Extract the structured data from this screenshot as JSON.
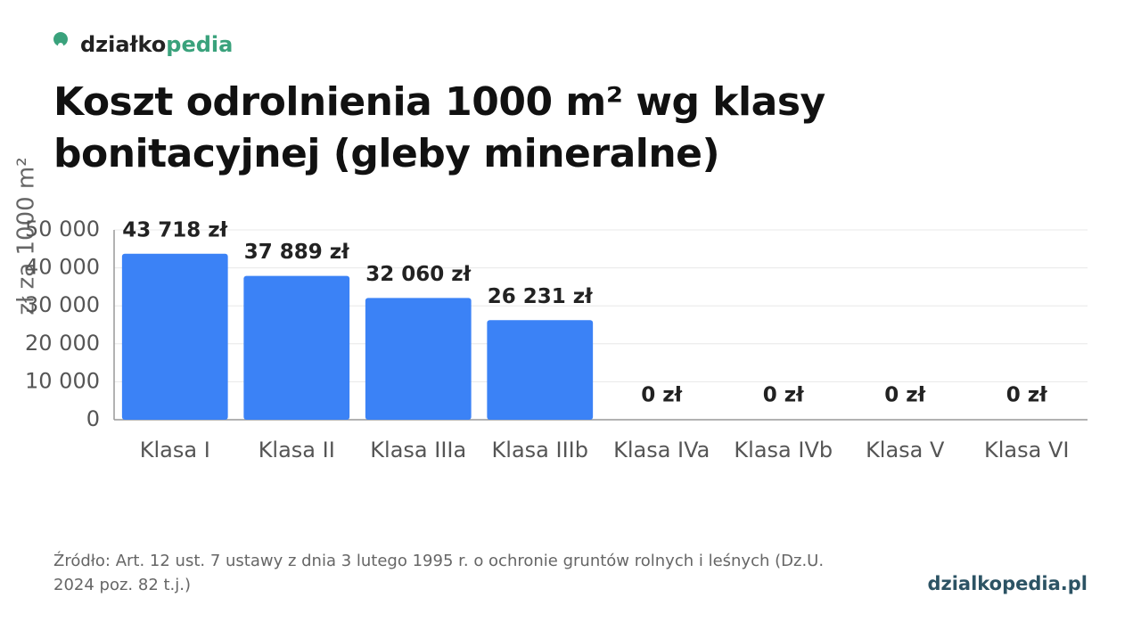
{
  "chart_data": {
    "type": "bar",
    "brand": {
      "dark": "działko",
      "green": "pedia"
    },
    "title": "Koszt odrolnienia 1000 m² wg klasy bonitacyjnej (gleby mineralne)",
    "y_label": "zł za 1000 m²",
    "categories": [
      "Klasa I",
      "Klasa II",
      "Klasa IIIa",
      "Klasa IIIb",
      "Klasa IVa",
      "Klasa IVb",
      "Klasa V",
      "Klasa VI"
    ],
    "values": [
      43718,
      37889,
      32060,
      26231,
      0,
      0,
      0,
      0
    ],
    "value_labels": [
      "43 718 zł",
      "37 889 zł",
      "32 060 zł",
      "26 231 zł",
      "0 zł",
      "0 zł",
      "0 zł",
      "0 zł"
    ],
    "color": "#3b82f6",
    "ylim": [
      0,
      50000
    ],
    "yticks": [
      0,
      {
        "value": 10000,
        "label": "10 000"
      },
      {
        "value": 20000,
        "label": "20 000"
      },
      {
        "value": 30000,
        "label": "30 000"
      },
      {
        "value": 40000,
        "label": "40 000"
      },
      {
        "value": 50000,
        "label": "50 000"
      }
    ],
    "grid": true,
    "source": "Źródło: Art. 12 ust. 7 ustawy z dnia 3 lutego 1995 r. o ochronie gruntów rolnych i leśnych (Dz.U. 2024 poz. 82 t.j.)",
    "site": "dzialkopedia.pl"
  }
}
